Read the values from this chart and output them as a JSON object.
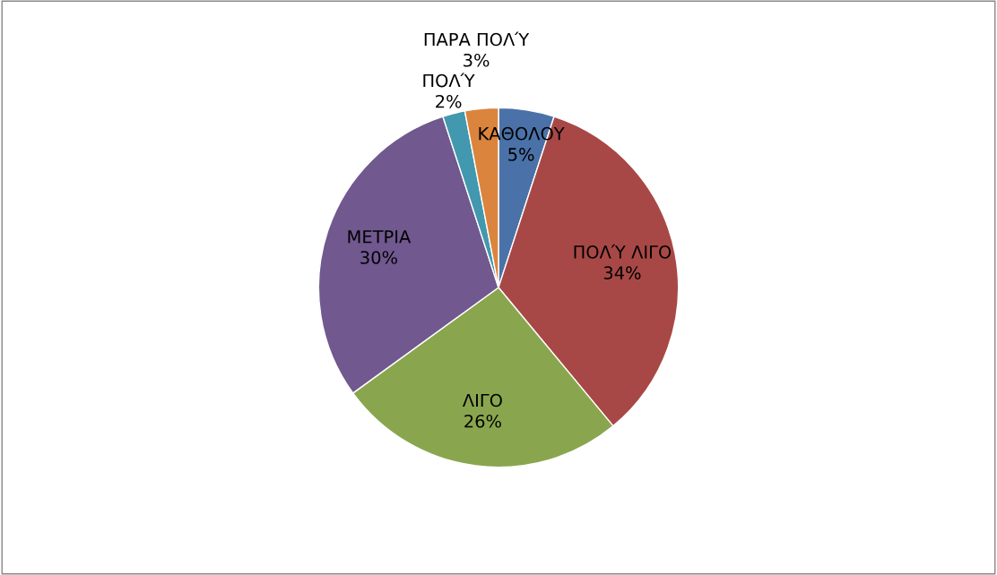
{
  "chart_data": {
    "type": "pie",
    "categories": [
      "ΚΑΘΟΛΟΥ",
      "ΠΟΛΎ ΛΙΓΟ",
      "ΛΙΓΟ",
      "ΜΕΤΡΙΑ",
      "ΠΟΛΎ",
      "ΠΑΡΑ ΠΟΛΎ"
    ],
    "values": [
      5,
      34,
      26,
      30,
      2,
      3
    ],
    "colors": [
      "#4a72a8",
      "#a84846",
      "#89a64e",
      "#71588f",
      "#4298ae",
      "#db843d"
    ],
    "value_labels": [
      "5%",
      "34%",
      "26%",
      "30%",
      "2%",
      "3%"
    ]
  }
}
